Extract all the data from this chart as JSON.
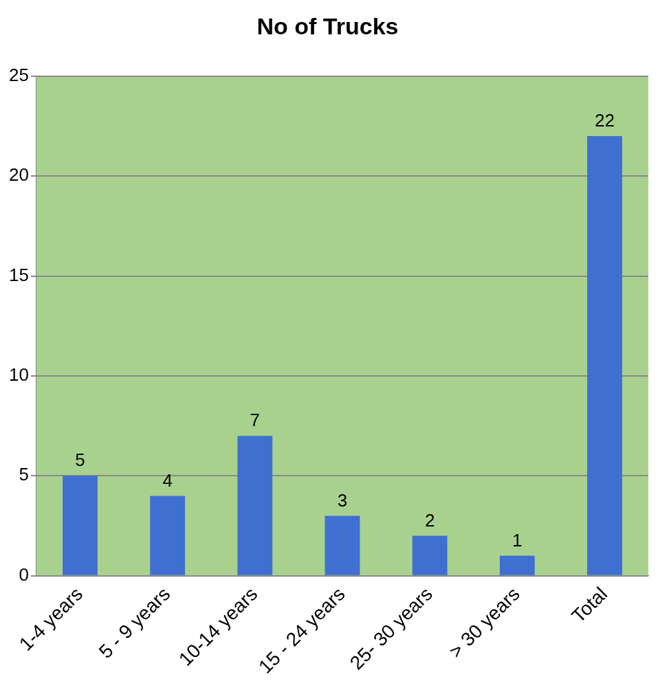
{
  "chart_data": {
    "type": "bar",
    "title": "No of Trucks",
    "categories": [
      "1-4 years",
      "5 - 9 years",
      "10-14 years",
      "15 - 24 years",
      "25- 30 years",
      "> 30 years",
      "Total"
    ],
    "values": [
      5,
      4,
      7,
      3,
      2,
      1,
      22
    ],
    "color": "#3f6fd0",
    "ylim": [
      0,
      25
    ],
    "yticks": [
      0,
      5,
      10,
      15,
      20,
      25
    ],
    "grid": "y",
    "data_labels": true,
    "legend": false
  }
}
